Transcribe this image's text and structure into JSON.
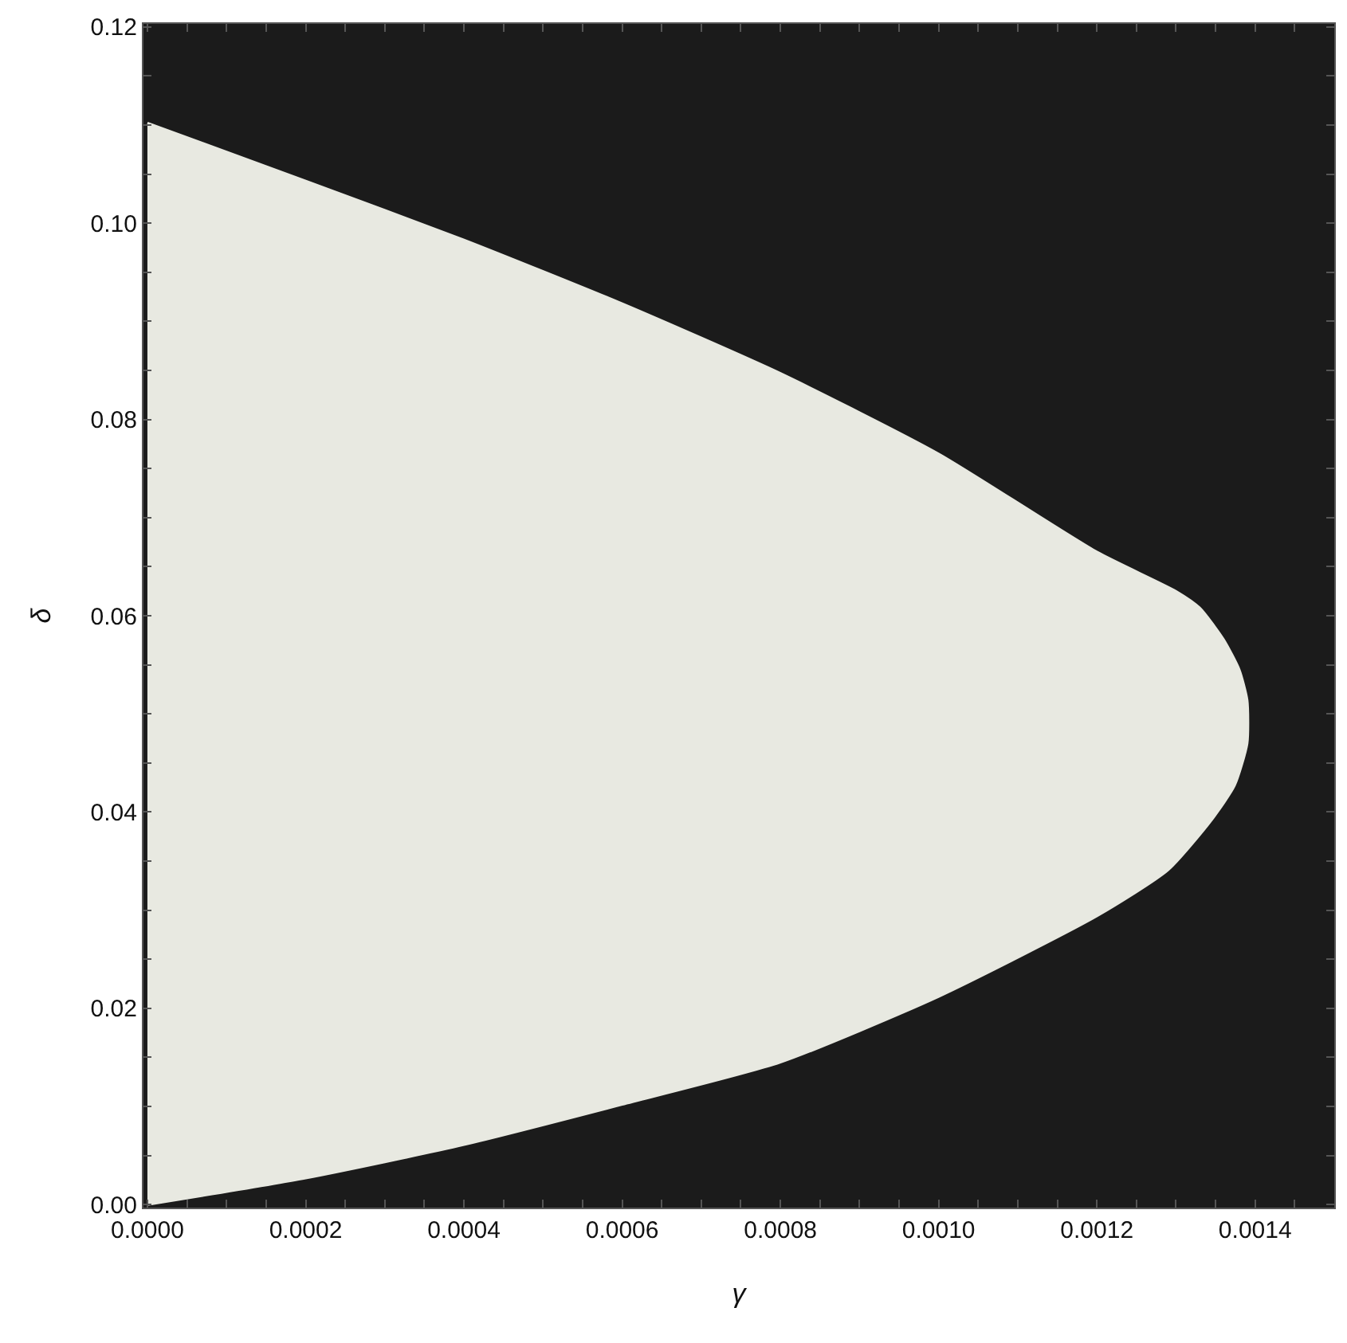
{
  "chart_data": {
    "type": "area",
    "xlabel": "γ",
    "ylabel": "δ",
    "xlim": [
      -5e-06,
      0.0015
    ],
    "ylim": [
      -0.0003,
      0.1203
    ],
    "xticks": [
      {
        "value": 0,
        "label": "0.0000"
      },
      {
        "value": 5e-05,
        "label": null
      },
      {
        "value": 0.0001,
        "label": null
      },
      {
        "value": 0.00015,
        "label": null
      },
      {
        "value": 0.0002,
        "label": "0.0002"
      },
      {
        "value": 0.00025,
        "label": null
      },
      {
        "value": 0.0003,
        "label": null
      },
      {
        "value": 0.00035,
        "label": null
      },
      {
        "value": 0.0004,
        "label": "0.0004"
      },
      {
        "value": 0.00045,
        "label": null
      },
      {
        "value": 0.0005,
        "label": null
      },
      {
        "value": 0.00055,
        "label": null
      },
      {
        "value": 0.0006,
        "label": "0.0006"
      },
      {
        "value": 0.00065,
        "label": null
      },
      {
        "value": 0.0007,
        "label": null
      },
      {
        "value": 0.00075,
        "label": null
      },
      {
        "value": 0.0008,
        "label": "0.0008"
      },
      {
        "value": 0.00085,
        "label": null
      },
      {
        "value": 0.0009,
        "label": null
      },
      {
        "value": 0.00095,
        "label": null
      },
      {
        "value": 0.001,
        "label": "0.0010"
      },
      {
        "value": 0.00105,
        "label": null
      },
      {
        "value": 0.0011,
        "label": null
      },
      {
        "value": 0.00115,
        "label": null
      },
      {
        "value": 0.0012,
        "label": "0.0012"
      },
      {
        "value": 0.00125,
        "label": null
      },
      {
        "value": 0.0013,
        "label": null
      },
      {
        "value": 0.00135,
        "label": null
      },
      {
        "value": 0.0014,
        "label": "0.0014"
      },
      {
        "value": 0.00145,
        "label": null
      }
    ],
    "yticks": [
      {
        "value": 0,
        "label": "0.00"
      },
      {
        "value": 0.005,
        "label": null
      },
      {
        "value": 0.01,
        "label": null
      },
      {
        "value": 0.015,
        "label": null
      },
      {
        "value": 0.02,
        "label": "0.02"
      },
      {
        "value": 0.025,
        "label": null
      },
      {
        "value": 0.03,
        "label": null
      },
      {
        "value": 0.035,
        "label": null
      },
      {
        "value": 0.04,
        "label": "0.04"
      },
      {
        "value": 0.045,
        "label": null
      },
      {
        "value": 0.05,
        "label": null
      },
      {
        "value": 0.055,
        "label": null
      },
      {
        "value": 0.06,
        "label": "0.06"
      },
      {
        "value": 0.065,
        "label": null
      },
      {
        "value": 0.07,
        "label": null
      },
      {
        "value": 0.075,
        "label": null
      },
      {
        "value": 0.08,
        "label": "0.08"
      },
      {
        "value": 0.085,
        "label": null
      },
      {
        "value": 0.09,
        "label": null
      },
      {
        "value": 0.095,
        "label": null
      },
      {
        "value": 0.1,
        "label": "0.10"
      },
      {
        "value": 0.105,
        "label": null
      },
      {
        "value": 0.11,
        "label": null
      },
      {
        "value": 0.115,
        "label": null
      },
      {
        "value": 0.12,
        "label": "0.12"
      }
    ],
    "bands": [
      {
        "axis": "x",
        "from": -5e-06,
        "to": 0.0015,
        "color": "#1b1b1b"
      }
    ],
    "series": [
      {
        "color": "#e8e9e1",
        "x": [
          0,
          0.0002,
          0.0004,
          0.0006,
          0.0008,
          0.001,
          0.0012,
          0.00129,
          0.001345,
          0.001374,
          0.00139,
          0.00139,
          0.00138,
          0.00136,
          0.00133,
          0.0013,
          0.0012,
          0.001,
          0.0008,
          0.0006,
          0.0004,
          0.0002,
          0
        ],
        "values": [
          0,
          0.0027,
          0.0061,
          0.0102,
          0.0145,
          0.0212,
          0.0294,
          0.0341,
          0.0392,
          0.0427,
          0.047,
          0.0514,
          0.0545,
          0.0576,
          0.0608,
          0.0625,
          0.0665,
          0.0765,
          0.0847,
          0.0918,
          0.0983,
          0.1043,
          0.1102
        ]
      }
    ]
  }
}
